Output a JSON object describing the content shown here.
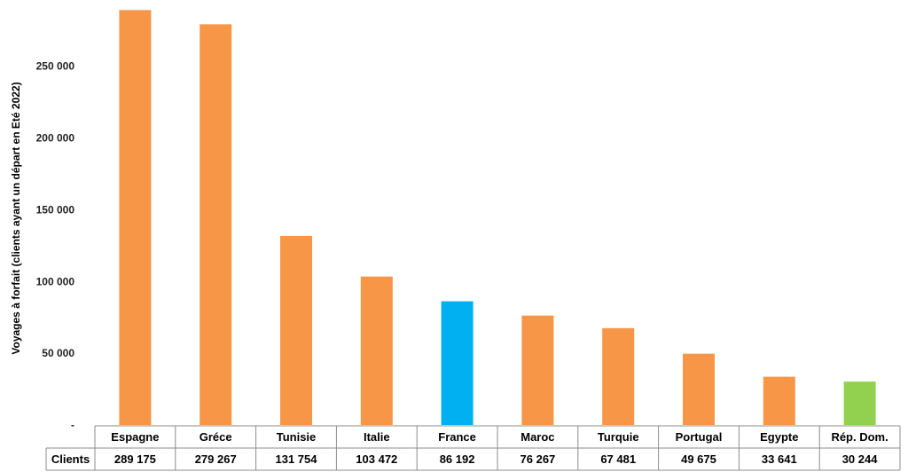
{
  "chart_data": {
    "type": "bar",
    "title": "",
    "ylabel": "Voyages à forfait (clients ayant un départ en Eté 2022)",
    "ylim": [
      0,
      290000
    ],
    "y_ticks": [
      {
        "value": 0,
        "label": "-"
      },
      {
        "value": 50000,
        "label": "50 000"
      },
      {
        "value": 100000,
        "label": "100 000"
      },
      {
        "value": 150000,
        "label": "150 000"
      },
      {
        "value": 200000,
        "label": "200 000"
      },
      {
        "value": 250000,
        "label": "250 000"
      }
    ],
    "grid": false,
    "table_row_header": "Clients",
    "categories": [
      "Espagne",
      "Gréce",
      "Tunisie",
      "Italie",
      "France",
      "Maroc",
      "Turquie",
      "Portugal",
      "Egypte",
      "Rép. Dom."
    ],
    "values": [
      289175,
      279267,
      131754,
      103472,
      86192,
      76267,
      67481,
      49675,
      33641,
      30244
    ],
    "value_labels": [
      "289 175",
      "279 267",
      "131 754",
      "103 472",
      "86 192",
      "76 267",
      "67 481",
      "49 675",
      "33 641",
      "30 244"
    ],
    "colors": [
      "#F79646",
      "#F79646",
      "#F79646",
      "#F79646",
      "#00B0F0",
      "#F79646",
      "#F79646",
      "#F79646",
      "#F79646",
      "#92D050"
    ]
  }
}
